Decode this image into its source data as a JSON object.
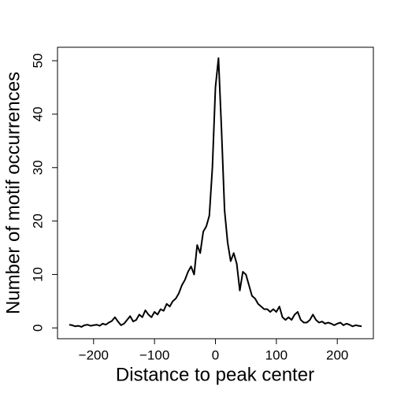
{
  "chart_data": {
    "type": "line",
    "xlabel": "Distance to peak center",
    "ylabel": "Number of motif occurrences",
    "x": [
      -240,
      -235,
      -230,
      -225,
      -220,
      -215,
      -210,
      -205,
      -200,
      -195,
      -190,
      -185,
      -180,
      -175,
      -170,
      -165,
      -160,
      -155,
      -150,
      -145,
      -140,
      -135,
      -130,
      -125,
      -120,
      -115,
      -110,
      -105,
      -100,
      -95,
      -90,
      -85,
      -80,
      -75,
      -70,
      -65,
      -60,
      -55,
      -50,
      -45,
      -40,
      -35,
      -30,
      -25,
      -20,
      -15,
      -10,
      -5,
      0,
      5,
      10,
      15,
      20,
      25,
      30,
      35,
      40,
      45,
      50,
      55,
      60,
      65,
      70,
      75,
      80,
      85,
      90,
      95,
      100,
      105,
      110,
      115,
      120,
      125,
      130,
      135,
      140,
      145,
      150,
      155,
      160,
      165,
      170,
      175,
      180,
      185,
      190,
      195,
      200,
      205,
      210,
      215,
      220,
      225,
      230,
      235,
      240
    ],
    "series": [
      {
        "color": "#000000",
        "values": [
          0.6,
          0.5,
          0.3,
          0.4,
          0.2,
          0.5,
          0.6,
          0.4,
          0.5,
          0.6,
          0.4,
          0.8,
          0.6,
          1.0,
          1.3,
          2.0,
          1.2,
          0.5,
          0.8,
          1.5,
          2.2,
          1.2,
          1.5,
          2.5,
          2.0,
          3.3,
          2.5,
          2.0,
          3.0,
          2.5,
          3.5,
          3.2,
          4.5,
          4.0,
          5.0,
          5.5,
          6.5,
          8.0,
          9.0,
          10.5,
          11.5,
          10.0,
          15.5,
          14.0,
          18.0,
          19.0,
          21.0,
          30.0,
          45.0,
          50.5,
          37.0,
          22.0,
          16.0,
          12.5,
          14.0,
          12.0,
          7.0,
          10.5,
          10.0,
          8.0,
          6.0,
          5.5,
          4.5,
          4.0,
          3.5,
          3.5,
          3.0,
          3.5,
          3.0,
          4.0,
          2.0,
          1.5,
          2.0,
          1.5,
          2.5,
          3.0,
          1.5,
          1.0,
          1.0,
          1.5,
          2.5,
          1.5,
          1.0,
          1.2,
          0.8,
          1.0,
          0.8,
          0.5,
          0.8,
          1.0,
          0.5,
          0.8,
          0.6,
          0.3,
          0.5,
          0.4,
          0.3
        ]
      }
    ],
    "xlim": [
      -259.2,
      259.2
    ],
    "ylim": [
      -2.02,
      52.52
    ],
    "xticks": [
      {
        "value": -200,
        "label": "−200"
      },
      {
        "value": -100,
        "label": "−100"
      },
      0,
      100,
      200
    ],
    "yticks": [
      0,
      10,
      20,
      30,
      40,
      50
    ]
  }
}
